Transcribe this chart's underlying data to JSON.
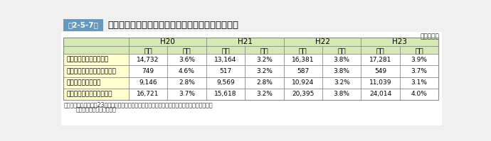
{
  "title_tag": "第2-5-7表",
  "title_text": "医療機関への受入れ照会回数４回以上の事案の推移",
  "note_right": "（各年中）",
  "years": [
    "H20",
    "H21",
    "H22",
    "H23"
  ],
  "col_headers": [
    "件数",
    "割合",
    "件数",
    "割合",
    "件数",
    "割合",
    "件数",
    "割合"
  ],
  "row_labels": [
    "重症以上傷病者搬送事案",
    "産科・周産期傷病者搬送事案",
    "小児傷病者搬送事案",
    "救命救急センター搬送事案"
  ],
  "data": [
    [
      "14,732",
      "3.6%",
      "13,164",
      "3.2%",
      "16,381",
      "3.8%",
      "17,281",
      "3.9%"
    ],
    [
      "749",
      "4.6%",
      "517",
      "3.2%",
      "587",
      "3.8%",
      "549",
      "3.7%"
    ],
    [
      "9,146",
      "2.8%",
      "9,569",
      "2.8%",
      "10,924",
      "3.2%",
      "11,039",
      "3.1%"
    ],
    [
      "16,721",
      "3.7%",
      "15,618",
      "3.2%",
      "20,395",
      "3.8%",
      "24,014",
      "4.0%"
    ]
  ],
  "footnote1": "（備考）　１　「平成23年中の救急搬送における医療機関の受入状況等実態調査」等により作成",
  "footnote2": "　　　　　２　重複有り。",
  "header_bg": "#d6e8b4",
  "row_label_bg_even": "#fffff0",
  "row_label_bg_odd": "#fffff0",
  "row_bg_even": "#ffffff",
  "row_bg_odd": "#ffffff",
  "tag_bg": "#6699bb",
  "tag_text_color": "#ffffff",
  "border_color": "#888888",
  "title_color": "#000000",
  "header_text_color": "#000000",
  "body_text_color": "#000000"
}
